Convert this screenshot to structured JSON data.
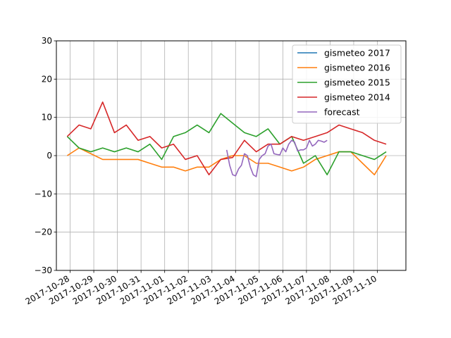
{
  "chart_data": {
    "type": "line",
    "title": "",
    "xlabel": "",
    "ylabel": "",
    "ylim": [
      -30,
      30
    ],
    "yticks": [
      -30,
      -20,
      -10,
      0,
      10,
      20,
      30
    ],
    "xlim": [
      "2017-10-27T10:00",
      "2017-11-11T05:00"
    ],
    "xticks": [
      "2017-10-28",
      "2017-10-29",
      "2017-10-30",
      "2017-10-31",
      "2017-11-01",
      "2017-11-02",
      "2017-11-03",
      "2017-11-04",
      "2017-11-05",
      "2017-11-06",
      "2017-11-07",
      "2017-11-08",
      "2017-11-09",
      "2017-11-10"
    ],
    "grid": true,
    "legend_position": "top-right",
    "series": [
      {
        "name": "gismeteo 2017",
        "color": "#1f77b4",
        "points": []
      },
      {
        "name": "gismeteo 2016",
        "color": "#ff7f0e",
        "points": [
          [
            "2017-10-27T21:00",
            0
          ],
          [
            "2017-10-28T09:00",
            2
          ],
          [
            "2017-10-28T21:00",
            0.5
          ],
          [
            "2017-10-29T09:00",
            -1
          ],
          [
            "2017-10-29T21:00",
            -1
          ],
          [
            "2017-10-30T09:00",
            -1
          ],
          [
            "2017-10-30T21:00",
            -1
          ],
          [
            "2017-10-31T09:00",
            -2
          ],
          [
            "2017-10-31T21:00",
            -3
          ],
          [
            "2017-11-01T09:00",
            -3
          ],
          [
            "2017-11-01T21:00",
            -4
          ],
          [
            "2017-11-02T09:00",
            -3
          ],
          [
            "2017-11-02T21:00",
            -3
          ],
          [
            "2017-11-03T09:00",
            -1
          ],
          [
            "2017-11-03T21:00",
            0
          ],
          [
            "2017-11-04T09:00",
            0
          ],
          [
            "2017-11-04T21:00",
            -2
          ],
          [
            "2017-11-05T09:00",
            -2
          ],
          [
            "2017-11-05T21:00",
            -3
          ],
          [
            "2017-11-06T09:00",
            -4
          ],
          [
            "2017-11-06T21:00",
            -3
          ],
          [
            "2017-11-07T09:00",
            -1
          ],
          [
            "2017-11-07T21:00",
            0
          ],
          [
            "2017-11-08T09:00",
            1
          ],
          [
            "2017-11-08T21:00",
            1
          ],
          [
            "2017-11-09T09:00",
            -2
          ],
          [
            "2017-11-09T21:00",
            -5
          ],
          [
            "2017-11-10T09:00",
            0
          ]
        ]
      },
      {
        "name": "gismeteo 2015",
        "color": "#2ca02c",
        "points": [
          [
            "2017-10-27T21:00",
            5
          ],
          [
            "2017-10-28T09:00",
            2
          ],
          [
            "2017-10-28T21:00",
            1
          ],
          [
            "2017-10-29T09:00",
            2
          ],
          [
            "2017-10-29T21:00",
            1
          ],
          [
            "2017-10-30T09:00",
            2
          ],
          [
            "2017-10-30T21:00",
            1
          ],
          [
            "2017-10-31T09:00",
            3
          ],
          [
            "2017-10-31T21:00",
            -1
          ],
          [
            "2017-11-01T09:00",
            5
          ],
          [
            "2017-11-01T21:00",
            6
          ],
          [
            "2017-11-02T09:00",
            8
          ],
          [
            "2017-11-02T21:00",
            6
          ],
          [
            "2017-11-03T09:00",
            11
          ],
          [
            "2017-11-03T21:00",
            8.5
          ],
          [
            "2017-11-04T09:00",
            6
          ],
          [
            "2017-11-04T21:00",
            5
          ],
          [
            "2017-11-05T09:00",
            7
          ],
          [
            "2017-11-05T21:00",
            3
          ],
          [
            "2017-11-06T09:00",
            5
          ],
          [
            "2017-11-06T21:00",
            -2
          ],
          [
            "2017-11-07T09:00",
            0
          ],
          [
            "2017-11-07T21:00",
            -5
          ],
          [
            "2017-11-08T09:00",
            1
          ],
          [
            "2017-11-08T21:00",
            1
          ],
          [
            "2017-11-09T09:00",
            0
          ],
          [
            "2017-11-09T21:00",
            -1
          ],
          [
            "2017-11-10T09:00",
            1
          ]
        ]
      },
      {
        "name": "gismeteo 2014",
        "color": "#d62728",
        "points": [
          [
            "2017-10-27T21:00",
            5
          ],
          [
            "2017-10-28T09:00",
            8
          ],
          [
            "2017-10-28T21:00",
            7
          ],
          [
            "2017-10-29T09:00",
            14
          ],
          [
            "2017-10-29T21:00",
            6
          ],
          [
            "2017-10-30T09:00",
            8
          ],
          [
            "2017-10-30T21:00",
            4
          ],
          [
            "2017-10-31T09:00",
            5
          ],
          [
            "2017-10-31T21:00",
            2
          ],
          [
            "2017-11-01T09:00",
            3
          ],
          [
            "2017-11-01T21:00",
            -1
          ],
          [
            "2017-11-02T09:00",
            0
          ],
          [
            "2017-11-02T21:00",
            -5
          ],
          [
            "2017-11-03T09:00",
            -1
          ],
          [
            "2017-11-03T21:00",
            -0.5
          ],
          [
            "2017-11-04T09:00",
            4
          ],
          [
            "2017-11-04T21:00",
            1
          ],
          [
            "2017-11-05T09:00",
            3
          ],
          [
            "2017-11-05T21:00",
            3
          ],
          [
            "2017-11-06T09:00",
            5
          ],
          [
            "2017-11-06T21:00",
            4
          ],
          [
            "2017-11-07T09:00",
            5
          ],
          [
            "2017-11-07T21:00",
            6
          ],
          [
            "2017-11-08T09:00",
            8
          ],
          [
            "2017-11-08T21:00",
            7
          ],
          [
            "2017-11-09T09:00",
            6
          ],
          [
            "2017-11-09T21:00",
            4
          ],
          [
            "2017-11-10T09:00",
            3
          ]
        ]
      },
      {
        "name": "forecast",
        "color": "#9467bd",
        "points": [
          [
            "2017-11-03T15:00",
            1.5
          ],
          [
            "2017-11-03T18:00",
            -2.5
          ],
          [
            "2017-11-03T21:00",
            -5
          ],
          [
            "2017-11-04T00:00",
            -5.3
          ],
          [
            "2017-11-04T03:00",
            -3.5
          ],
          [
            "2017-11-04T06:00",
            -2.5
          ],
          [
            "2017-11-04T09:00",
            0.5
          ],
          [
            "2017-11-04T12:00",
            0
          ],
          [
            "2017-11-04T15:00",
            -3
          ],
          [
            "2017-11-04T18:00",
            -5
          ],
          [
            "2017-11-04T21:00",
            -5.5
          ],
          [
            "2017-11-05T00:00",
            -1
          ],
          [
            "2017-11-05T03:00",
            0
          ],
          [
            "2017-11-05T06:00",
            0.5
          ],
          [
            "2017-11-05T09:00",
            2.5
          ],
          [
            "2017-11-05T12:00",
            3
          ],
          [
            "2017-11-05T15:00",
            0.5
          ],
          [
            "2017-11-05T18:00",
            0.3
          ],
          [
            "2017-11-05T21:00",
            0.2
          ],
          [
            "2017-11-06T00:00",
            2
          ],
          [
            "2017-11-06T03:00",
            1
          ],
          [
            "2017-11-06T06:00",
            3
          ],
          [
            "2017-11-06T09:00",
            4
          ],
          [
            "2017-11-06T12:00",
            3.5
          ],
          [
            "2017-11-06T15:00",
            1.2
          ],
          [
            "2017-11-06T18:00",
            1.5
          ],
          [
            "2017-11-06T21:00",
            1.5
          ],
          [
            "2017-11-07T00:00",
            2
          ],
          [
            "2017-11-07T03:00",
            4
          ],
          [
            "2017-11-07T06:00",
            2.5
          ],
          [
            "2017-11-07T09:00",
            3
          ],
          [
            "2017-11-07T12:00",
            4
          ],
          [
            "2017-11-07T15:00",
            3.8
          ],
          [
            "2017-11-07T18:00",
            3.5
          ],
          [
            "2017-11-07T21:00",
            4
          ]
        ]
      }
    ]
  }
}
